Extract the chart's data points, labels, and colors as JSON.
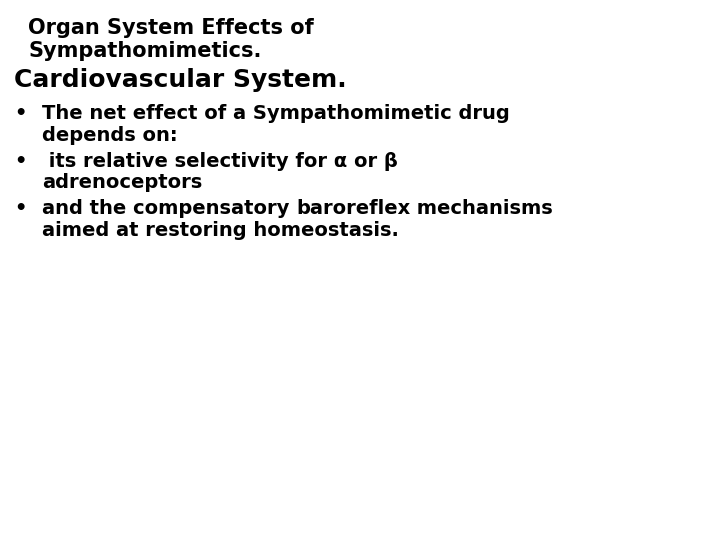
{
  "background_color": "#ffffff",
  "title_line1": "Organ System Effects of",
  "title_line2": "Sympathomimetics.",
  "subtitle": "Cardiovascular System.",
  "bullet1_line1": "The net effect of a Sympathomimetic drug",
  "bullet1_line2": "depends on:",
  "bullet2_line1": " its relative selectivity for α or β",
  "bullet2_line2": "adrenoceptors",
  "bullet3_line1_normal": "and the compensatory ",
  "bullet3_line1_bold": "baroreflex",
  "bullet3_line1_normal2": " mechanisms",
  "bullet3_line2": "aimed at restoring homeostasis.",
  "title_fontsize": 15,
  "subtitle_fontsize": 18,
  "bullet_fontsize": 14,
  "text_color": "#000000",
  "fig_width": 7.2,
  "fig_height": 5.4,
  "dpi": 100
}
